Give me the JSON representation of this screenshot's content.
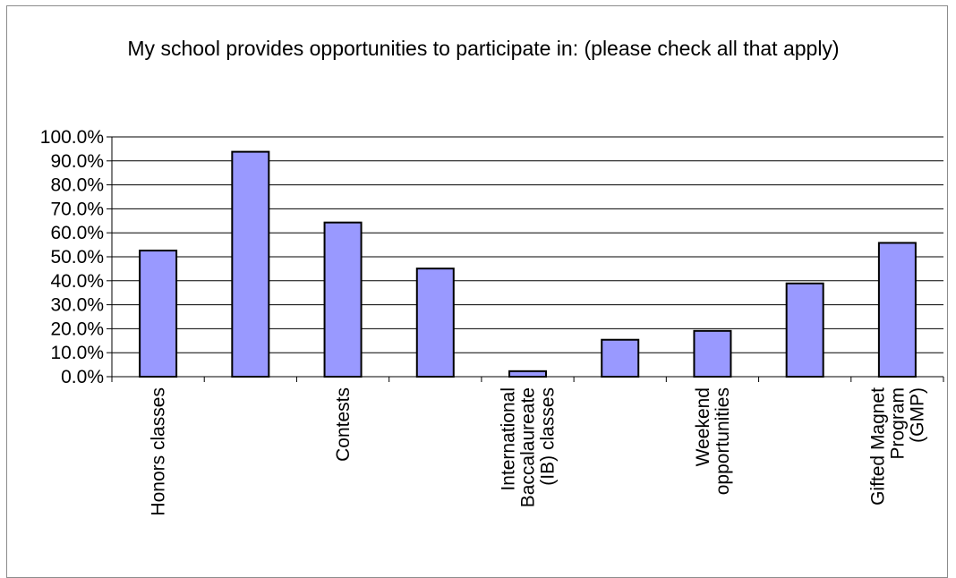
{
  "chart_data": {
    "type": "bar",
    "title": "My school provides opportunities to participate in: (please check all that apply)",
    "categories": [
      [
        "Honors classes"
      ],
      [],
      [
        "Contests"
      ],
      [],
      [
        "International",
        "Baccalaureate",
        "(IB) classes"
      ],
      [],
      [
        "Weekend",
        "opportunities"
      ],
      [],
      [
        "Gifted Magnet",
        "Program",
        "(GMP)"
      ]
    ],
    "values": [
      52.6,
      93.8,
      64.3,
      45.1,
      2.3,
      15.4,
      19.1,
      38.9,
      55.8
    ],
    "ylim": [
      0,
      100
    ],
    "y_ticks": [
      "0.0%",
      "10.0%",
      "20.0%",
      "30.0%",
      "40.0%",
      "50.0%",
      "60.0%",
      "70.0%",
      "80.0%",
      "90.0%",
      "100.0%"
    ],
    "grid": true,
    "xlabel": "",
    "ylabel": "",
    "colors": {
      "bar_fill": "#9999ff",
      "bar_stroke": "#000000",
      "grid": "#000000"
    }
  }
}
